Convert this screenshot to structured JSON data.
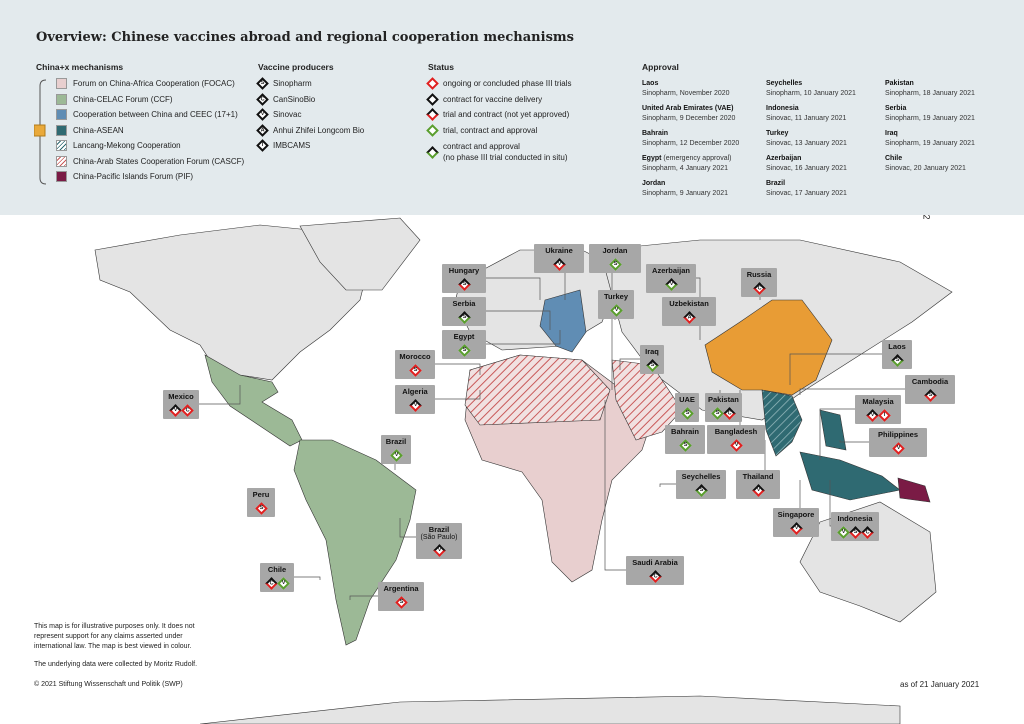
{
  "title": "Overview: Chinese vaccines abroad and regional cooperation mechanisms",
  "page_number": "2",
  "colors": {
    "header_bg": "#e3eaed",
    "land": "#e4e4e4",
    "focac": "#e8cfcf",
    "ccf": "#9cb996",
    "ceec": "#608db4",
    "asean": "#2f6a72",
    "china": "#e89c35",
    "pif": "#7a1b45",
    "label_box": "#a7a7a7",
    "trial": "#e02020",
    "contract": "#111111",
    "approval": "#5a9e2e"
  },
  "mechanisms": {
    "heading": "China+x mechanisms",
    "items": [
      {
        "label": "Forum on China-Africa Cooperation (FOCAC)",
        "color": "#e8cfcf",
        "pattern": "solid"
      },
      {
        "label": "China-CELAC Forum (CCF)",
        "color": "#9cb996",
        "pattern": "solid"
      },
      {
        "label": "Cooperation between China and CEEC (17+1)",
        "color": "#608db4",
        "pattern": "solid"
      },
      {
        "label": "China-ASEAN",
        "color": "#2f6a72",
        "pattern": "solid"
      },
      {
        "label": "Lancang-Mekong Cooperation",
        "color": "#2f6a72",
        "pattern": "hatched"
      },
      {
        "label": "China-Arab States Cooperation Forum (CASCF)",
        "color": "#c95a5a",
        "pattern": "hatched"
      },
      {
        "label": "China-Pacific Islands Forum (PIF)",
        "color": "#7a1b45",
        "pattern": "solid"
      }
    ]
  },
  "producers": {
    "heading": "Vaccine producers",
    "items": [
      {
        "letter": "S",
        "label": "Sinopharm"
      },
      {
        "letter": "C",
        "label": "CanSinoBio"
      },
      {
        "letter": "V",
        "label": "Sinovac"
      },
      {
        "letter": "A",
        "label": "Anhui Zhifei Longcom Bio"
      },
      {
        "letter": "I",
        "label": "IMBCAMS"
      }
    ]
  },
  "status": {
    "heading": "Status",
    "items": [
      {
        "key": "trial",
        "label": "ongoing or concluded phase III trials"
      },
      {
        "key": "contract",
        "label": "contract for vaccine delivery"
      },
      {
        "key": "trialcontract",
        "label": "trial and contract (not yet approved)"
      },
      {
        "key": "approved",
        "label": "trial, contract and approval"
      },
      {
        "key": "contractapproval",
        "label": "contract and approval",
        "label2": "(no phase III trial conducted in situ)"
      }
    ]
  },
  "approval": {
    "heading": "Approval",
    "items": [
      {
        "country": "Laos",
        "detail": "Sinopharm, November 2020"
      },
      {
        "country": "United Arab Emirates (VAE)",
        "detail": "Sinopharm, 9 December 2020"
      },
      {
        "country": "Bahrain",
        "detail": "Sinopharm, 12 December 2020"
      },
      {
        "country": "Egypt",
        "note": " (emergency approval)",
        "detail": "Sinopharm, 4 January 2021"
      },
      {
        "country": "Jordan",
        "detail": "Sinopharm, 9 January 2021"
      },
      {
        "country": "Seychelles",
        "detail": "Sinopharm, 10 January 2021"
      },
      {
        "country": "Indonesia",
        "detail": "Sinovac, 11 January 2021"
      },
      {
        "country": "Turkey",
        "detail": "Sinovac, 13 January 2021"
      },
      {
        "country": "Azerbaijan",
        "detail": "Sinovac, 16 January 2021"
      },
      {
        "country": "Brazil",
        "detail": "Sinovac, 17 January 2021"
      },
      {
        "country": "Pakistan",
        "detail": "Sinopharm, 18 January 2021"
      },
      {
        "country": "Serbia",
        "detail": "Sinopharm, 19 January 2021"
      },
      {
        "country": "Iraq",
        "detail": "Sinopharm, 19 January 2021"
      },
      {
        "country": "Chile",
        "detail": "Sinovac, 20 January 2021"
      }
    ]
  },
  "labels": [
    {
      "country": "Ukraine",
      "badges": [
        {
          "letter": "V",
          "status": "trialcontract"
        }
      ]
    },
    {
      "country": "Jordan",
      "badges": [
        {
          "letter": "S",
          "status": "approved"
        }
      ]
    },
    {
      "country": "Hungary",
      "badges": [
        {
          "letter": "S",
          "status": "trialcontract"
        }
      ]
    },
    {
      "country": "Serbia",
      "badges": [
        {
          "letter": "S",
          "status": "contractapproval"
        }
      ]
    },
    {
      "country": "Azerbaijan",
      "badges": [
        {
          "letter": "V",
          "status": "contractapproval"
        }
      ]
    },
    {
      "country": "Turkey",
      "badges": [
        {
          "letter": "V",
          "status": "approved"
        }
      ]
    },
    {
      "country": "Uzbekistan",
      "badges": [
        {
          "letter": "A",
          "status": "trialcontract"
        }
      ]
    },
    {
      "country": "Egypt",
      "badges": [
        {
          "letter": "S",
          "status": "approved"
        }
      ]
    },
    {
      "country": "Morocco",
      "badges": [
        {
          "letter": "S",
          "status": "trial"
        }
      ]
    },
    {
      "country": "Iraq",
      "badges": [
        {
          "letter": "S",
          "status": "contractapproval"
        }
      ]
    },
    {
      "country": "Russia",
      "badges": [
        {
          "letter": "C",
          "status": "trialcontract"
        }
      ]
    },
    {
      "country": "Laos",
      "badges": [
        {
          "letter": "S",
          "status": "contractapproval"
        }
      ]
    },
    {
      "country": "Cambodia",
      "badges": [
        {
          "letter": "S",
          "status": "trialcontract"
        }
      ]
    },
    {
      "country": "Algeria",
      "badges": [
        {
          "letter": "V",
          "status": "trialcontract"
        }
      ]
    },
    {
      "country": "UAE",
      "badges": [
        {
          "letter": "S",
          "status": "approved"
        }
      ]
    },
    {
      "country": "Pakistan",
      "badges": [
        {
          "letter": "S",
          "status": "approved"
        },
        {
          "letter": "C",
          "status": "trialcontract"
        }
      ]
    },
    {
      "country": "Malaysia",
      "badges": [
        {
          "letter": "V",
          "status": "trialcontract"
        },
        {
          "letter": "I",
          "status": "trial"
        }
      ]
    },
    {
      "country": "Bahrain",
      "badges": [
        {
          "letter": "S",
          "status": "approved"
        }
      ]
    },
    {
      "country": "Bangladesh",
      "badges": [
        {
          "letter": "V",
          "status": "trial"
        }
      ]
    },
    {
      "country": "Philippines",
      "badges": [
        {
          "letter": "V",
          "status": "trial"
        }
      ]
    },
    {
      "country": "Mexico",
      "badges": [
        {
          "letter": "V",
          "status": "trialcontract"
        },
        {
          "letter": "C",
          "status": "trial"
        }
      ]
    },
    {
      "country": "Brazil",
      "badges": [
        {
          "letter": "V",
          "status": "approved"
        }
      ]
    },
    {
      "country": "Seychelles",
      "badges": [
        {
          "letter": "S",
          "status": "contractapproval"
        }
      ]
    },
    {
      "country": "Thailand",
      "badges": [
        {
          "letter": "V",
          "status": "trialcontract"
        }
      ]
    },
    {
      "country": "Peru",
      "badges": [
        {
          "letter": "S",
          "status": "trial"
        }
      ]
    },
    {
      "country": "Singapore",
      "badges": [
        {
          "letter": "V",
          "status": "trialcontract"
        }
      ]
    },
    {
      "country": "Indonesia",
      "badges": [
        {
          "letter": "V",
          "status": "approved"
        },
        {
          "letter": "S",
          "status": "trialcontract"
        },
        {
          "letter": "C",
          "status": "trialcontract"
        }
      ]
    },
    {
      "country": "Brazil",
      "sub": "(São Paulo)",
      "badges": [
        {
          "letter": "V",
          "status": "trialcontract"
        }
      ]
    },
    {
      "country": "Saudi Arabia",
      "badges": [
        {
          "letter": "C",
          "status": "trialcontract"
        }
      ]
    },
    {
      "country": "Chile",
      "badges": [
        {
          "letter": "C",
          "status": "trialcontract"
        },
        {
          "letter": "V",
          "status": "approved"
        }
      ]
    },
    {
      "country": "Argentina",
      "badges": [
        {
          "letter": "S",
          "status": "trial"
        }
      ]
    }
  ],
  "footer": {
    "disclaimer": [
      "This map is for illustrative purposes only. It does not",
      "represent support for any claims asserted under",
      "international law. The map is best viewed in colour."
    ],
    "credit": "The underlying data were collected by Moritz Rudolf.",
    "copyright": "© 2021 Stiftung Wissenschaft und Politik (SWP)",
    "as_of": "as of 21 January 2021"
  }
}
